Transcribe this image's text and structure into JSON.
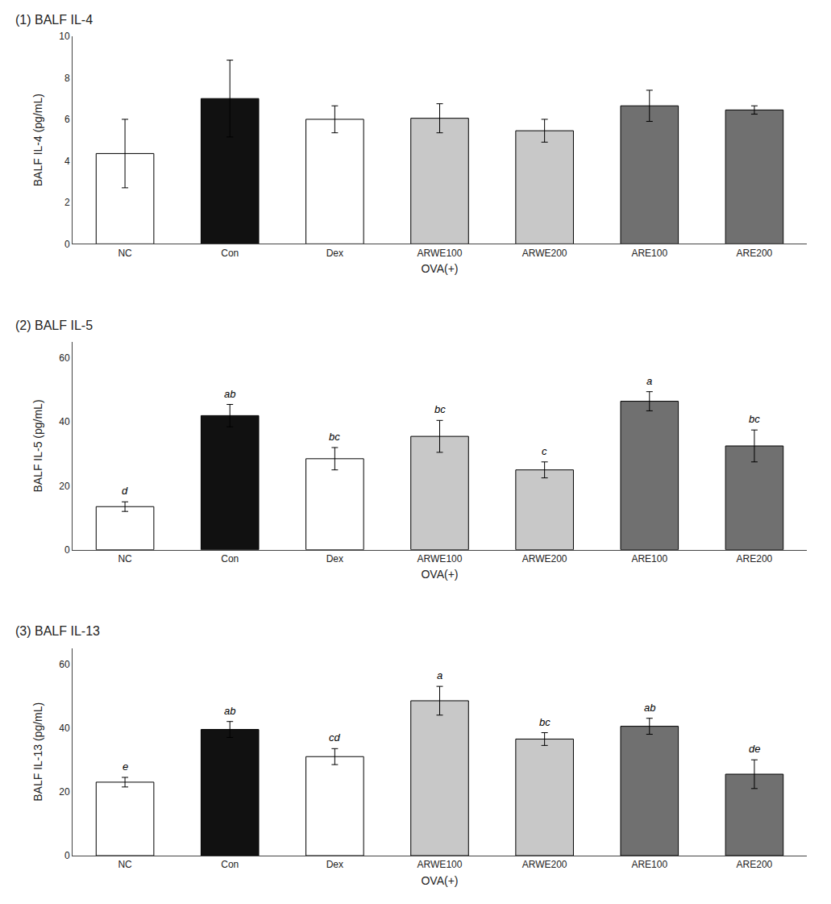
{
  "chart_data": [
    {
      "type": "bar",
      "title": "(1) BALF IL-4",
      "y_label": "BALF IL-4 (pg/mL)",
      "x_label": "OVA(+)",
      "categories": [
        "NC",
        "Con",
        "Dex",
        "ARWE100",
        "ARWE200",
        "ARE100",
        "ARE200"
      ],
      "values": [
        4.35,
        7.0,
        6.0,
        6.05,
        5.45,
        6.65,
        6.45
      ],
      "errors": [
        1.65,
        1.85,
        0.65,
        0.7,
        0.55,
        0.75,
        0.2
      ],
      "colors": [
        "white",
        "#111111",
        "white",
        "#c8c8c8",
        "#c8c8c8",
        "#707070",
        "#707070"
      ],
      "ylim": [
        0,
        10
      ],
      "yticks": [
        0,
        2,
        4,
        6,
        8,
        10
      ],
      "grid": false
    },
    {
      "type": "bar",
      "title": "(2) BALF IL-5",
      "y_label": "BALF IL-5 (pg/mL)",
      "x_label": "OVA(+)",
      "categories": [
        "NC",
        "Con",
        "Dex",
        "ARWE100",
        "ARWE200",
        "ARE100",
        "ARE200"
      ],
      "values": [
        13.5,
        42.0,
        28.5,
        35.5,
        25.0,
        46.5,
        32.5
      ],
      "errors": [
        1.5,
        3.5,
        3.5,
        5.0,
        2.5,
        3.0,
        5.0
      ],
      "colors": [
        "white",
        "#111111",
        "white",
        "#c8c8c8",
        "#c8c8c8",
        "#707070",
        "#707070"
      ],
      "annotations": [
        {
          "category": "NC",
          "text": "d"
        },
        {
          "category": "Con",
          "text": "ab"
        },
        {
          "category": "Dex",
          "text": "bc"
        },
        {
          "category": "ARWE100",
          "text": "bc"
        },
        {
          "category": "ARWE200",
          "text": "c"
        },
        {
          "category": "ARE100",
          "text": "a"
        },
        {
          "category": "ARE200",
          "text": "bc"
        }
      ],
      "ylim": [
        0,
        65
      ],
      "yticks": [
        0,
        20,
        40,
        60
      ],
      "grid": false
    },
    {
      "type": "bar",
      "title": "(3) BALF IL-13",
      "y_label": "BALF IL-13 (pg/mL)",
      "x_label": "OVA(+)",
      "categories": [
        "NC",
        "Con",
        "Dex",
        "ARWE100",
        "ARWE200",
        "ARE100",
        "ARE200"
      ],
      "values": [
        23.0,
        39.5,
        31.0,
        48.5,
        36.5,
        40.5,
        25.5
      ],
      "errors": [
        1.5,
        2.5,
        2.5,
        4.5,
        2.0,
        2.5,
        4.5
      ],
      "colors": [
        "white",
        "#111111",
        "white",
        "#c8c8c8",
        "#c8c8c8",
        "#707070",
        "#707070"
      ],
      "annotations": [
        {
          "category": "NC",
          "text": "e"
        },
        {
          "category": "Con",
          "text": "ab"
        },
        {
          "category": "Dex",
          "text": "cd"
        },
        {
          "category": "ARWE100",
          "text": "a"
        },
        {
          "category": "ARWE200",
          "text": "bc"
        },
        {
          "category": "ARE100",
          "text": "ab"
        },
        {
          "category": "ARE200",
          "text": "de"
        }
      ],
      "ylim": [
        0,
        65
      ],
      "yticks": [
        0,
        20,
        40,
        60
      ],
      "grid": false
    }
  ]
}
